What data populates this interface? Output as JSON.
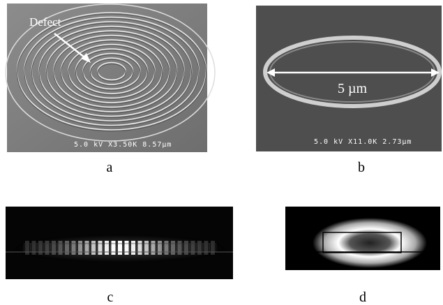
{
  "panels": [
    {
      "label": "a",
      "annotation": "Defect",
      "scale_text": "5.0 kV X3.50K 8.57µm"
    },
    {
      "label": "b",
      "annotation": "5 µm",
      "scale_text": "5.0 kV X11.0K 2.73µm"
    },
    {
      "label": "c"
    },
    {
      "label": "d"
    }
  ]
}
